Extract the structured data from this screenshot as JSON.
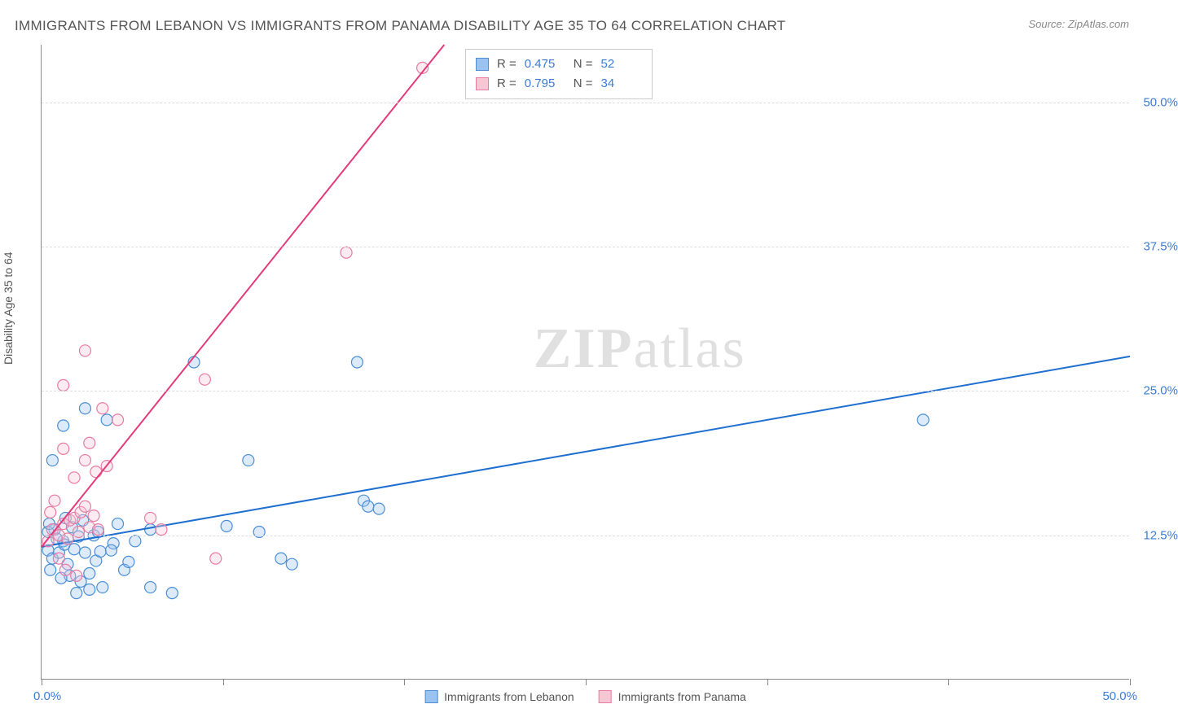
{
  "title": "IMMIGRANTS FROM LEBANON VS IMMIGRANTS FROM PANAMA DISABILITY AGE 35 TO 64 CORRELATION CHART",
  "source": "Source: ZipAtlas.com",
  "y_axis_label": "Disability Age 35 to 64",
  "watermark": {
    "bold": "ZIP",
    "light": "atlas"
  },
  "chart": {
    "type": "scatter",
    "xlim": [
      0,
      50
    ],
    "ylim": [
      0,
      55
    ],
    "x_tick_labels": {
      "min": "0.0%",
      "max": "50.0%"
    },
    "y_ticks": [
      {
        "value": 12.5,
        "label": "12.5%"
      },
      {
        "value": 25.0,
        "label": "25.0%"
      },
      {
        "value": 37.5,
        "label": "37.5%"
      },
      {
        "value": 50.0,
        "label": "50.0%"
      }
    ],
    "x_minor_ticks": [
      0,
      8.33,
      16.67,
      25,
      33.33,
      41.67,
      50
    ],
    "background_color": "#ffffff",
    "grid_color": "#dddddd",
    "marker_radius": 7,
    "marker_stroke_width": 1.2,
    "fill_opacity": 0.35,
    "line_width": 2
  },
  "series": [
    {
      "name": "Immigrants from Lebanon",
      "color_fill": "#9cc3f0",
      "color_stroke": "#4a8fd6",
      "line_color": "#1f6fd0",
      "R": "0.475",
      "N": "52",
      "regression": {
        "x1": 0,
        "y1": 11.5,
        "x2": 50,
        "y2": 28
      },
      "points": [
        [
          0.3,
          11.2
        ],
        [
          0.5,
          10.5
        ],
        [
          0.8,
          11.0
        ],
        [
          1.0,
          12.0
        ],
        [
          1.2,
          10.0
        ],
        [
          1.3,
          9.0
        ],
        [
          1.5,
          11.3
        ],
        [
          1.7,
          12.4
        ],
        [
          1.8,
          8.5
        ],
        [
          2.0,
          11.0
        ],
        [
          2.2,
          9.2
        ],
        [
          2.4,
          12.5
        ],
        [
          2.5,
          10.3
        ],
        [
          2.7,
          11.1
        ],
        [
          0.6,
          13.0
        ],
        [
          1.4,
          13.2
        ],
        [
          1.1,
          14.0
        ],
        [
          0.4,
          9.5
        ],
        [
          0.9,
          8.8
        ],
        [
          2.8,
          8.0
        ],
        [
          3.0,
          22.5
        ],
        [
          3.3,
          11.8
        ],
        [
          3.5,
          13.5
        ],
        [
          3.8,
          9.5
        ],
        [
          4.0,
          10.2
        ],
        [
          4.3,
          12.0
        ],
        [
          0.5,
          19.0
        ],
        [
          1.0,
          22.0
        ],
        [
          2.0,
          23.5
        ],
        [
          5.0,
          13.0
        ],
        [
          5.0,
          8.0
        ],
        [
          6.0,
          7.5
        ],
        [
          7.0,
          27.5
        ],
        [
          8.5,
          13.3
        ],
        [
          9.5,
          19.0
        ],
        [
          10.0,
          12.8
        ],
        [
          11.0,
          10.5
        ],
        [
          11.5,
          10.0
        ],
        [
          14.5,
          27.5
        ],
        [
          14.8,
          15.5
        ],
        [
          15.0,
          15.0
        ],
        [
          15.5,
          14.8
        ],
        [
          40.5,
          22.5
        ],
        [
          2.2,
          7.8
        ],
        [
          1.6,
          7.5
        ],
        [
          0.7,
          12.2
        ],
        [
          1.9,
          13.8
        ],
        [
          2.6,
          12.8
        ],
        [
          3.2,
          11.2
        ],
        [
          0.3,
          12.8
        ],
        [
          0.35,
          13.5
        ],
        [
          1.05,
          11.7
        ]
      ]
    },
    {
      "name": "Immigrants from Panama",
      "color_fill": "#f7c6d4",
      "color_stroke": "#e77ba3",
      "line_color": "#e23a7a",
      "R": "0.795",
      "N": "34",
      "regression": {
        "x1": 0,
        "y1": 11.5,
        "x2": 18.5,
        "y2": 55
      },
      "points": [
        [
          0.3,
          12.0
        ],
        [
          0.5,
          13.0
        ],
        [
          0.8,
          12.5
        ],
        [
          1.0,
          13.5
        ],
        [
          1.2,
          12.2
        ],
        [
          1.3,
          13.8
        ],
        [
          1.5,
          14.0
        ],
        [
          1.7,
          12.8
        ],
        [
          1.8,
          14.5
        ],
        [
          2.0,
          15.0
        ],
        [
          2.2,
          13.2
        ],
        [
          2.4,
          14.2
        ],
        [
          2.6,
          13.0
        ],
        [
          0.8,
          10.5
        ],
        [
          1.1,
          9.5
        ],
        [
          1.6,
          9.0
        ],
        [
          0.4,
          14.5
        ],
        [
          0.6,
          15.5
        ],
        [
          1.0,
          20.0
        ],
        [
          1.5,
          17.5
        ],
        [
          2.0,
          19.0
        ],
        [
          2.5,
          18.0
        ],
        [
          2.2,
          20.5
        ],
        [
          3.0,
          18.5
        ],
        [
          2.8,
          23.5
        ],
        [
          3.5,
          22.5
        ],
        [
          2.0,
          28.5
        ],
        [
          1.0,
          25.5
        ],
        [
          5.0,
          14.0
        ],
        [
          5.5,
          13.0
        ],
        [
          7.5,
          26.0
        ],
        [
          8.0,
          10.5
        ],
        [
          14.0,
          37.0
        ],
        [
          17.5,
          53.0
        ]
      ]
    }
  ],
  "legend": [
    {
      "label": "Immigrants from Lebanon",
      "fill": "#9cc3f0",
      "stroke": "#4a8fd6"
    },
    {
      "label": "Immigrants from Panama",
      "fill": "#f7c6d4",
      "stroke": "#e77ba3"
    }
  ],
  "stats_box": {
    "R_label": "R =",
    "N_label": "N ="
  }
}
